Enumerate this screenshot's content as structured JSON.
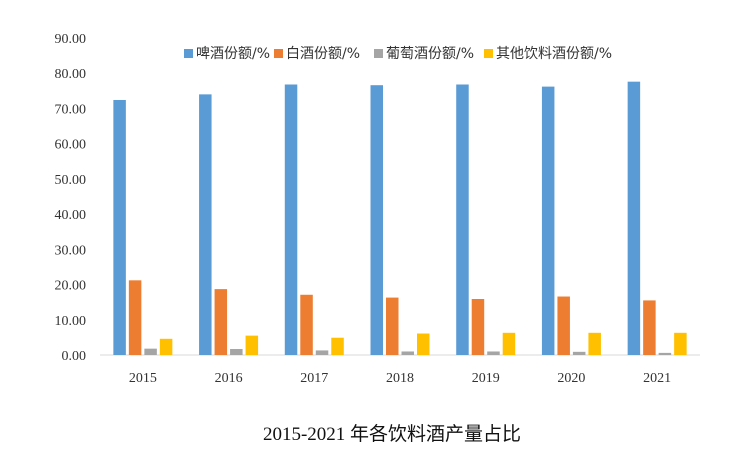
{
  "chart_data": {
    "type": "bar",
    "title": "2015-2021 年各饮料酒产量占比",
    "xlabel": "",
    "ylabel": "",
    "ylim": [
      0,
      90
    ],
    "yticks": [
      "0.00",
      "10.00",
      "20.00",
      "30.00",
      "40.00",
      "50.00",
      "60.00",
      "70.00",
      "80.00",
      "90.00"
    ],
    "grid": false,
    "legend_position": "top",
    "categories": [
      "2015",
      "2016",
      "2017",
      "2018",
      "2019",
      "2020",
      "2021"
    ],
    "series": [
      {
        "name": "啤酒份额/%",
        "color": "#5B9BD5",
        "values": [
          72.4,
          74.0,
          76.8,
          76.6,
          76.8,
          76.2,
          77.6
        ]
      },
      {
        "name": "白酒份额/%",
        "color": "#ED7D31",
        "values": [
          21.2,
          18.7,
          17.1,
          16.3,
          15.9,
          16.6,
          15.5
        ]
      },
      {
        "name": "葡萄酒份额/%",
        "color": "#A5A5A5",
        "values": [
          1.8,
          1.7,
          1.3,
          1.0,
          1.0,
          0.9,
          0.6
        ]
      },
      {
        "name": "其他饮料酒份额/%",
        "color": "#FFC000",
        "values": [
          4.6,
          5.5,
          4.9,
          6.1,
          6.3,
          6.3,
          6.3
        ]
      }
    ]
  }
}
